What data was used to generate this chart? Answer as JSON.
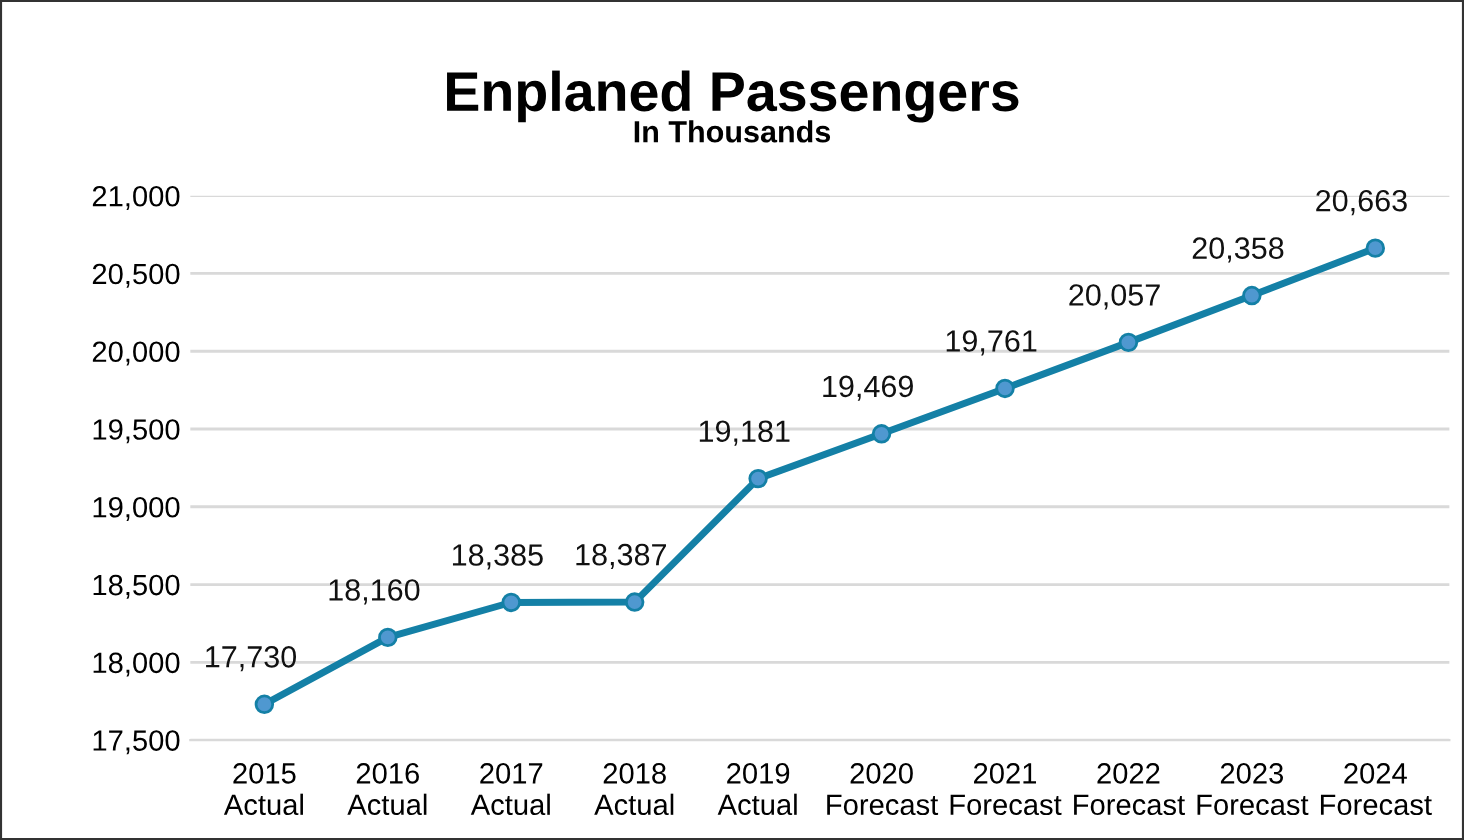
{
  "chart_data": {
    "type": "line",
    "title": "Enplaned Passengers",
    "subtitle": "In Thousands",
    "categories": [
      "2015\nActual",
      "2016\nActual",
      "2017\nActual",
      "2018\nActual",
      "2019\nActual",
      "2020\nForecast",
      "2021\nForecast",
      "2022\nForecast",
      "2023\nForecast",
      "2024\nForecast"
    ],
    "series": [
      {
        "color": "#1480a6",
        "values": [
          17730,
          18160,
          18385,
          18387,
          19181,
          19469,
          19761,
          20057,
          20358,
          20663
        ],
        "value_labels": [
          "17,730",
          "18,160",
          "18,385",
          "18,387",
          "19,181",
          "19,469",
          "19,761",
          "20,057",
          "20,358",
          "20,663"
        ]
      }
    ],
    "ylim": [
      17500,
      21000
    ],
    "yticks": [
      {
        "value": 17500,
        "label": "17,500"
      },
      {
        "value": 18000,
        "label": "18,000"
      },
      {
        "value": 18500,
        "label": "18,500"
      },
      {
        "value": 19000,
        "label": "19,000"
      },
      {
        "value": 19500,
        "label": "19,500"
      },
      {
        "value": 20000,
        "label": "20,000"
      },
      {
        "value": 20500,
        "label": "20,500"
      },
      {
        "value": 21000,
        "label": "21,000"
      }
    ],
    "grid": "y",
    "marker": "circle",
    "line_style": "solid"
  }
}
